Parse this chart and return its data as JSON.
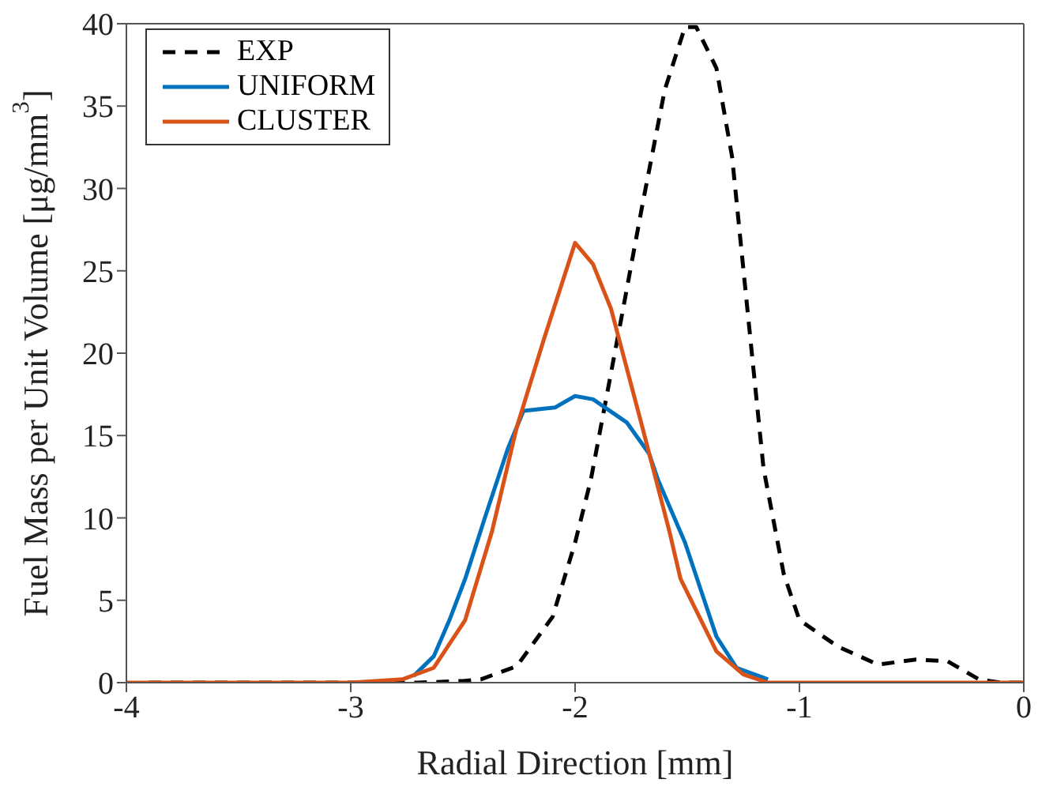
{
  "chart_data": {
    "type": "line",
    "xlabel": "Radial Direction [mm]",
    "ylabel": "Fuel Mass per Unit Volume [μg/mm$^{3}$]",
    "xlim": [
      -4,
      0
    ],
    "xticks": [
      -4,
      -3,
      -2,
      -1,
      0
    ],
    "ylim": [
      0,
      40
    ],
    "yticks": [
      0,
      5,
      10,
      15,
      20,
      25,
      30,
      35,
      40
    ],
    "grid": false,
    "legend": "top left",
    "marker": "none",
    "series": [
      {
        "name": "EXP",
        "color": "#000000",
        "line_style": "dashed",
        "x": [
          -3.9,
          -3.5,
          -3.0,
          -2.7,
          -2.5,
          -2.42,
          -2.26,
          -2.1,
          -2.0,
          -1.93,
          -1.79,
          -1.7,
          -1.6,
          -1.51,
          -1.46,
          -1.37,
          -1.3,
          -1.23,
          -1.16,
          -1.07,
          -1.0,
          -0.83,
          -0.65,
          -0.48,
          -0.34,
          -0.2,
          -0.1,
          0
        ],
        "values": [
          0,
          0,
          0,
          0,
          0.1,
          0.2,
          1.0,
          4.0,
          8.5,
          12.3,
          22.4,
          29,
          36,
          39.8,
          39.8,
          37.3,
          31.9,
          22.4,
          13,
          6.6,
          3.8,
          2.2,
          1.1,
          1.4,
          1.3,
          0.2,
          0,
          0
        ]
      },
      {
        "name": "UNIFORM",
        "color": "#0072bd",
        "line_style": "solid",
        "x": [
          -2.72,
          -2.63,
          -2.56,
          -2.49,
          -2.4,
          -2.3,
          -2.23,
          -2.09,
          -2.0,
          -1.92,
          -1.77,
          -1.67,
          -1.63,
          -1.51,
          -1.37,
          -1.28,
          -1.14
        ],
        "values": [
          0.4,
          1.6,
          3.8,
          6.3,
          10.1,
          14.2,
          16.5,
          16.7,
          17.4,
          17.2,
          15.8,
          13.9,
          12.3,
          8.5,
          2.8,
          0.9,
          0.2
        ]
      },
      {
        "name": "CLUSTER",
        "color": "#d95319",
        "line_style": "solid",
        "x": [
          -4,
          -3.5,
          -3.0,
          -2.77,
          -2.63,
          -2.49,
          -2.37,
          -2.26,
          -2.14,
          -2.0,
          -1.92,
          -1.84,
          -1.7,
          -1.58,
          -1.53,
          -1.37,
          -1.25,
          -1.14,
          -1.0,
          -0.5,
          0
        ],
        "values": [
          0,
          0,
          0,
          0.2,
          0.9,
          3.8,
          9.2,
          15.5,
          20.8,
          26.7,
          25.4,
          22.7,
          15.5,
          9.2,
          6.3,
          1.9,
          0.5,
          0,
          0,
          0,
          0
        ]
      }
    ]
  }
}
